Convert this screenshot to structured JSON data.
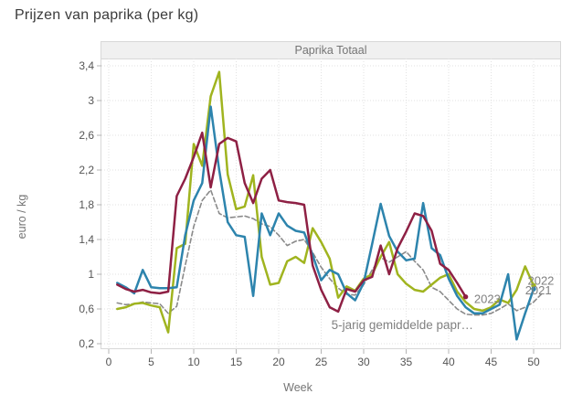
{
  "page": {
    "title": "Prijzen van paprika (per kg)"
  },
  "panel": {
    "header": "Paprika Totaal"
  },
  "chart_data": {
    "type": "line",
    "title": "Paprika Totaal",
    "xlabel": "Week",
    "ylabel": "euro / kg",
    "xlim": [
      0,
      53
    ],
    "ylim": [
      0.2,
      3.48
    ],
    "grid": true,
    "x_ticks": [
      0,
      5,
      10,
      15,
      20,
      25,
      30,
      35,
      40,
      45,
      50
    ],
    "y_ticks": [
      {
        "v": 0.2,
        "label": "0,2"
      },
      {
        "v": 0.6,
        "label": "0,6"
      },
      {
        "v": 1.0,
        "label": "1"
      },
      {
        "v": 1.4,
        "label": "1,4"
      },
      {
        "v": 1.8,
        "label": "1,8"
      },
      {
        "v": 2.2,
        "label": "2,2"
      },
      {
        "v": 2.6,
        "label": "2,6"
      },
      {
        "v": 3.0,
        "label": "3"
      },
      {
        "v": 3.4,
        "label": "3,4"
      }
    ],
    "x_start": 1,
    "series": [
      {
        "name": "5-jarig gemiddelde papr…",
        "color": "#8a8a8a",
        "style": "dashed",
        "end_dot": false,
        "values": [
          0.67,
          0.65,
          0.66,
          0.68,
          0.67,
          0.66,
          0.55,
          0.63,
          1.1,
          1.55,
          1.85,
          1.97,
          1.7,
          1.65,
          1.66,
          1.67,
          1.64,
          1.58,
          1.55,
          1.45,
          1.33,
          1.38,
          1.4,
          1.25,
          1.08,
          0.95,
          0.84,
          0.77,
          0.76,
          0.88,
          1.05,
          1.19,
          1.14,
          1.2,
          1.26,
          1.15,
          1.05,
          0.85,
          0.8,
          0.7,
          0.6,
          0.54,
          0.53,
          0.53,
          0.55,
          0.6,
          0.66,
          0.58,
          0.62,
          0.68,
          0.78
        ]
      },
      {
        "name": "2022",
        "color": "#a0b41f",
        "style": "solid",
        "end_dot": true,
        "values": [
          0.6,
          0.62,
          0.66,
          0.67,
          0.64,
          0.62,
          0.33,
          1.3,
          1.35,
          2.5,
          2.25,
          3.05,
          3.33,
          2.15,
          1.75,
          1.78,
          2.14,
          1.2,
          0.88,
          0.9,
          1.15,
          1.2,
          1.13,
          1.53,
          1.37,
          1.18,
          0.73,
          0.86,
          0.81,
          0.95,
          1.0,
          1.2,
          1.37,
          1.0,
          0.89,
          0.82,
          0.8,
          0.88,
          0.96,
          1.0,
          0.8,
          0.68,
          0.6,
          0.58,
          0.62,
          0.71,
          0.67,
          0.82,
          1.09,
          0.87
        ]
      },
      {
        "name": "2021",
        "color": "#2d84ad",
        "style": "solid",
        "end_dot": true,
        "values": [
          0.9,
          0.85,
          0.78,
          1.05,
          0.85,
          0.84,
          0.84,
          0.85,
          1.45,
          1.85,
          2.05,
          2.93,
          2.2,
          1.6,
          1.45,
          1.43,
          0.75,
          1.7,
          1.45,
          1.7,
          1.56,
          1.5,
          1.48,
          1.22,
          0.93,
          1.05,
          1.0,
          0.78,
          0.7,
          0.9,
          1.35,
          1.81,
          1.44,
          1.26,
          1.16,
          1.18,
          1.82,
          1.3,
          1.22,
          0.95,
          0.75,
          0.62,
          0.55,
          0.55,
          0.6,
          0.65,
          1.0,
          0.25,
          0.55,
          0.83
        ]
      },
      {
        "name": "2023",
        "color": "#8e2044",
        "style": "solid",
        "end_dot": true,
        "values": [
          0.88,
          0.83,
          0.8,
          0.82,
          0.79,
          0.78,
          0.8,
          1.9,
          2.1,
          2.35,
          2.63,
          2.0,
          2.5,
          2.57,
          2.53,
          2.05,
          1.82,
          2.1,
          2.2,
          1.85,
          1.83,
          1.82,
          1.8,
          1.1,
          0.82,
          0.62,
          0.57,
          0.83,
          0.8,
          0.93,
          0.97,
          1.33,
          1.0,
          1.3,
          1.49,
          1.7,
          1.67,
          1.5,
          1.12,
          1.05,
          0.9,
          0.74
        ]
      }
    ],
    "annotations": [
      {
        "text": "2022",
        "week": 49.3,
        "value": 0.88,
        "size": 13
      },
      {
        "text": "2021",
        "week": 49.0,
        "value": 0.77,
        "size": 13
      },
      {
        "text": "2023",
        "week": 43.0,
        "value": 0.67,
        "size": 13
      },
      {
        "text": "5-jarig gemiddelde papr…",
        "week": 26.2,
        "value": 0.37,
        "size": 13.5
      }
    ],
    "colors": {
      "grid": "#e2e2e2",
      "tick_mark": "#b5b5b5",
      "tick_text": "#555555",
      "annotation_text": "#808080"
    }
  }
}
